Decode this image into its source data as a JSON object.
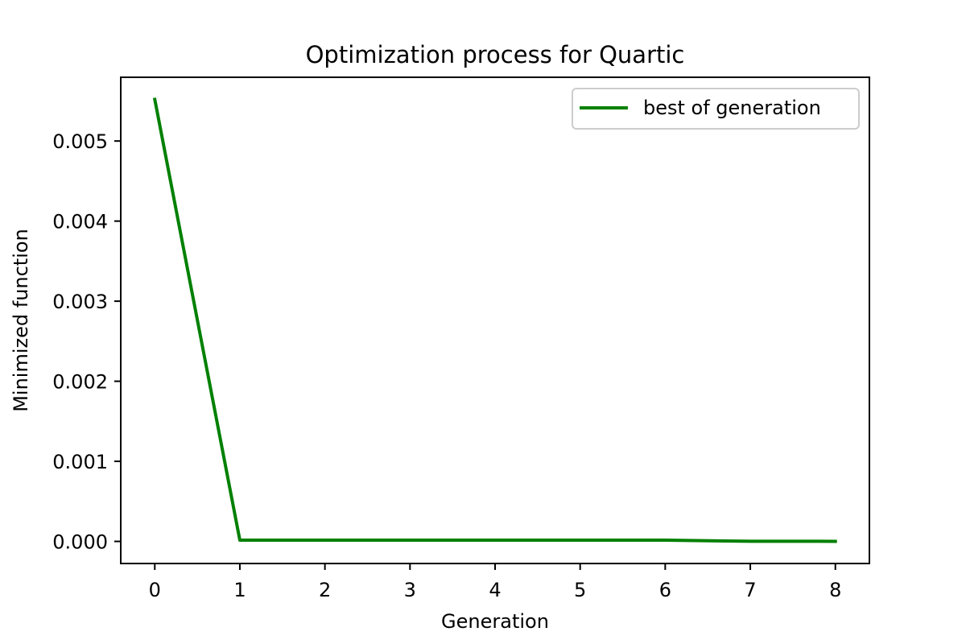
{
  "chart_data": {
    "type": "line",
    "title": "Optimization process for Quartic",
    "xlabel": "Generation",
    "ylabel": "Minimized function",
    "x": [
      0,
      1,
      2,
      3,
      4,
      5,
      6,
      7,
      8
    ],
    "series": [
      {
        "name": "best of generation",
        "color": "#008000",
        "values": [
          0.00552,
          1.5e-05,
          1.5e-05,
          1.5e-05,
          1.5e-05,
          1.5e-05,
          1.5e-05,
          2e-06,
          1e-06
        ]
      }
    ],
    "xlim": [
      -0.4,
      8.4
    ],
    "ylim": [
      -0.000276,
      0.005796
    ],
    "x_ticks": [
      0,
      1,
      2,
      3,
      4,
      5,
      6,
      7,
      8
    ],
    "x_tick_labels": [
      "0",
      "1",
      "2",
      "3",
      "4",
      "5",
      "6",
      "7",
      "8"
    ],
    "y_ticks": [
      0.0,
      0.001,
      0.002,
      0.003,
      0.004,
      0.005
    ],
    "y_tick_labels": [
      "0.000",
      "0.001",
      "0.002",
      "0.003",
      "0.004",
      "0.005"
    ],
    "grid": false,
    "legend": {
      "position": "top-right",
      "entries": [
        "best of generation"
      ]
    }
  }
}
